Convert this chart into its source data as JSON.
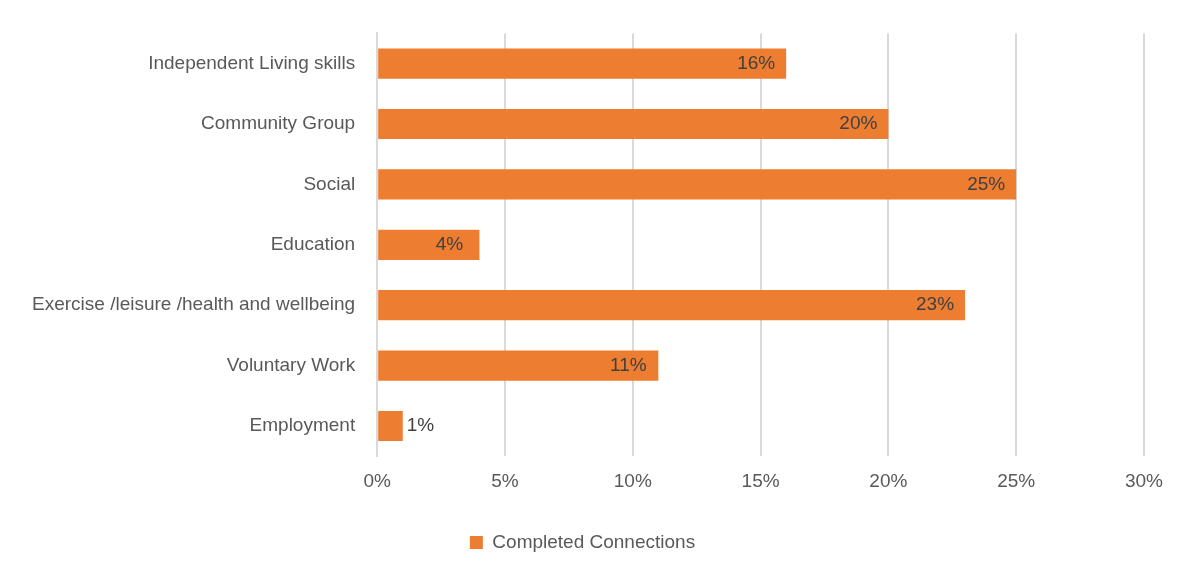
{
  "chart_data": {
    "type": "bar",
    "orientation": "horizontal",
    "categories": [
      "Independent Living skills",
      "Community Group",
      "Social",
      "Education",
      "Exercise /leisure /health and wellbeing",
      "Voluntary Work",
      "Employment"
    ],
    "series": [
      {
        "name": "Completed Connections",
        "color": "#ed7d31",
        "values": [
          16,
          20,
          25,
          4,
          23,
          11,
          1
        ],
        "value_labels": [
          "16%",
          "20%",
          "25%",
          "4%",
          "23%",
          "11%",
          "1%"
        ]
      }
    ],
    "xlim": [
      0,
      30
    ],
    "xticks": [
      {
        "value": 0,
        "label": "0%"
      },
      {
        "value": 5,
        "label": "5%"
      },
      {
        "value": 10,
        "label": "10%"
      },
      {
        "value": 15,
        "label": "15%"
      },
      {
        "value": 20,
        "label": "20%"
      },
      {
        "value": 25,
        "label": "25%"
      },
      {
        "value": 30,
        "label": "30%"
      }
    ],
    "grid": "x",
    "legend": "bottom"
  }
}
